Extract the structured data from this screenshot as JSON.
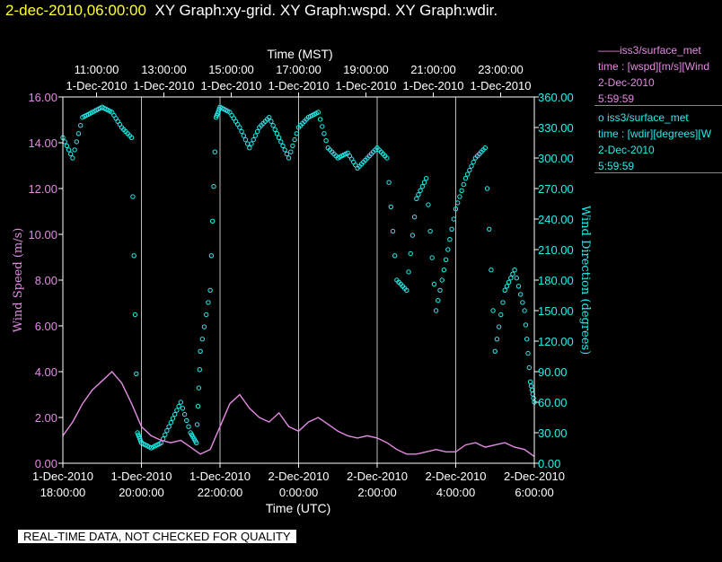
{
  "header": {
    "timestamp": "2-dec-2010,06:00:00",
    "graphs": "XY Graph:xy-grid.  XY Graph:wspd.  XY Graph:wdir."
  },
  "legend": [
    {
      "name": "——iss3/surface_met",
      "var": "time : [wspd][m/s][Wind",
      "date": "2-Dec-2010",
      "time": "5:59:59",
      "color": "#e48ae4"
    },
    {
      "name": "o  iss3/surface_met",
      "var": "time : [wdir][degrees][W",
      "date": "2-Dec-2010",
      "time": "5:59:59",
      "color": "#22eeee"
    }
  ],
  "footer": {
    "quality": "REAL-TIME DATA, NOT CHECKED FOR QUALITY"
  },
  "chart_data": {
    "type": "line+scatter",
    "xlabel_top": "Time (MST)",
    "xlabel_bottom": "Time (UTC)",
    "ylabel_left": "Wind Speed (m/s)",
    "ylabel_right": "Wind Direction (degrees)",
    "x_range_hours_utc": [
      18,
      30
    ],
    "ylim_left": [
      0,
      16
    ],
    "ylim_right": [
      0,
      360
    ],
    "yticks_left": [
      "0.00",
      "2.00",
      "4.00",
      "6.00",
      "8.00",
      "10.00",
      "12.00",
      "14.00",
      "16.00"
    ],
    "yticks_right": [
      "0.00",
      "30.00",
      "60.00",
      "90.00",
      "120.00",
      "150.00",
      "180.00",
      "210.00",
      "240.00",
      "270.00",
      "300.00",
      "330.00",
      "360.00"
    ],
    "xticks_top": [
      {
        "time": "11:00:00",
        "date": "1-Dec-2010"
      },
      {
        "time": "13:00:00",
        "date": "1-Dec-2010"
      },
      {
        "time": "15:00:00",
        "date": "1-Dec-2010"
      },
      {
        "time": "17:00:00",
        "date": "1-Dec-2010"
      },
      {
        "time": "19:00:00",
        "date": "1-Dec-2010"
      },
      {
        "time": "21:00:00",
        "date": "1-Dec-2010"
      },
      {
        "time": "23:00:00",
        "date": "1-Dec-2010"
      }
    ],
    "xticks_bottom": [
      {
        "date": "1-Dec-2010",
        "time": "18:00:00"
      },
      {
        "date": "1-Dec-2010",
        "time": "20:00:00"
      },
      {
        "date": "1-Dec-2010",
        "time": "22:00:00"
      },
      {
        "date": "2-Dec-2010",
        "time": "0:00:00"
      },
      {
        "date": "2-Dec-2010",
        "time": "2:00:00"
      },
      {
        "date": "2-Dec-2010",
        "time": "4:00:00"
      },
      {
        "date": "2-Dec-2010",
        "time": "6:00:00"
      }
    ],
    "grid": true,
    "series": [
      {
        "name": "iss3/surface_met wspd",
        "axis": "left",
        "style": "line",
        "color": "#e48ae4",
        "x": [
          18.0,
          18.25,
          18.5,
          18.75,
          19.0,
          19.25,
          19.5,
          19.75,
          20.0,
          20.25,
          20.5,
          20.75,
          21.0,
          21.25,
          21.5,
          21.75,
          22.0,
          22.25,
          22.5,
          22.75,
          23.0,
          23.25,
          23.5,
          23.75,
          24.0,
          24.25,
          24.5,
          24.75,
          25.0,
          25.25,
          25.5,
          25.75,
          26.0,
          26.25,
          26.5,
          26.75,
          27.0,
          27.25,
          27.5,
          27.75,
          28.0,
          28.25,
          28.5,
          28.75,
          29.0,
          29.25,
          29.5,
          29.75,
          30.0
        ],
        "y": [
          1.2,
          1.8,
          2.6,
          3.2,
          3.6,
          4.0,
          3.5,
          2.6,
          1.6,
          1.2,
          1.0,
          0.9,
          1.0,
          0.7,
          0.4,
          0.6,
          1.6,
          2.6,
          3.0,
          2.4,
          2.0,
          1.8,
          2.2,
          1.6,
          1.4,
          1.8,
          2.0,
          1.7,
          1.4,
          1.2,
          1.1,
          1.2,
          1.1,
          0.9,
          0.6,
          0.4,
          0.4,
          0.5,
          0.6,
          0.5,
          0.5,
          0.8,
          0.9,
          0.7,
          0.8,
          0.9,
          0.7,
          0.6,
          0.3
        ]
      },
      {
        "name": "iss3/surface_met wdir",
        "axis": "right",
        "style": "scatter",
        "color": "#22eeee",
        "x": [
          18.0,
          18.25,
          18.5,
          18.75,
          19.0,
          19.25,
          19.5,
          19.75,
          19.9,
          20.0,
          20.25,
          20.5,
          20.75,
          21.0,
          21.25,
          21.4,
          21.5,
          21.75,
          21.9,
          22.0,
          22.25,
          22.5,
          22.75,
          23.0,
          23.25,
          23.5,
          23.75,
          24.0,
          24.25,
          24.5,
          24.75,
          25.0,
          25.25,
          25.5,
          25.75,
          26.0,
          26.25,
          26.5,
          26.75,
          27.0,
          27.25,
          27.5,
          27.75,
          28.0,
          28.25,
          28.5,
          28.75,
          29.0,
          29.25,
          29.5,
          29.75,
          29.9,
          30.0
        ],
        "y": [
          320,
          300,
          340,
          345,
          350,
          345,
          330,
          320,
          30,
          20,
          15,
          20,
          40,
          60,
          30,
          20,
          110,
          170,
          340,
          350,
          345,
          330,
          310,
          330,
          340,
          320,
          300,
          330,
          340,
          345,
          310,
          300,
          305,
          290,
          300,
          310,
          300,
          180,
          170,
          260,
          280,
          150,
          200,
          250,
          280,
          300,
          310,
          110,
          170,
          190,
          150,
          80,
          60
        ]
      }
    ]
  }
}
